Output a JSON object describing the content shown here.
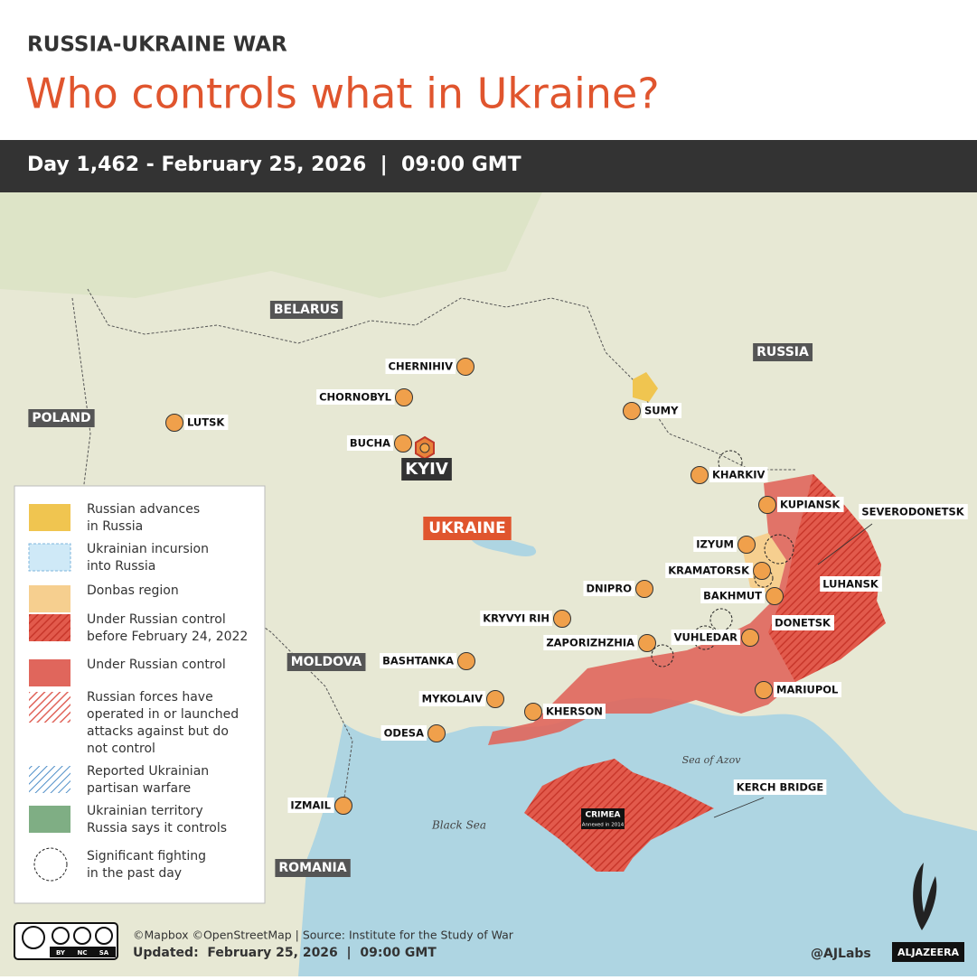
{
  "header": {
    "kicker": "RUSSIA-UKRAINE WAR",
    "title": "Who controls what in Ukraine?",
    "date_bar": "Day 1,462 - February 25, 2026  |  09:00 GMT"
  },
  "map": {
    "countries": [
      "BELARUS",
      "RUSSIA",
      "POLAND",
      "MOLDOVA",
      "ROMANIA"
    ],
    "ukraine_label": "UKRAINE",
    "capital": "KYIV",
    "cities": [
      "CHERNIHIV",
      "CHORNOBYL",
      "LUTSK",
      "BUCHA",
      "SUMY",
      "KHARKIV",
      "KUPIANSK",
      "SEVERODONETSK",
      "IZYUM",
      "KRAMATORSK",
      "LUHANSK",
      "BAKHMUT",
      "DNIPRO",
      "KRYVYI RIH",
      "DONETSK",
      "ZAPORIZHZHIA",
      "VUHLEDAR",
      "BASHTANKA",
      "MYKOLAIV",
      "KHERSON",
      "MARIUPOL",
      "ODESA",
      "IZMAIL",
      "KERCH BRIDGE"
    ],
    "seas": [
      "Sea of Azov",
      "Black Sea"
    ],
    "crimea": {
      "label": "CRIMEA",
      "note": "Annexed in 2014"
    }
  },
  "legend": {
    "items": [
      [
        "Russian advances",
        "in Russia"
      ],
      [
        "Ukrainian incursion",
        "into Russia"
      ],
      [
        "Donbas region"
      ],
      [
        "Under Russian control",
        "before February 24, 2022"
      ],
      [
        "Under Russian control"
      ],
      [
        "Russian forces have",
        "operated in or launched",
        "attacks against but do",
        "not control"
      ],
      [
        "Reported Ukrainian",
        "partisan warfare"
      ],
      [
        "Ukrainian territory",
        "Russia says it controls"
      ],
      [
        "Significant fighting",
        "in the past day"
      ]
    ]
  },
  "footer": {
    "license": [
      "BY",
      "NC",
      "SA"
    ],
    "credits": "©Mapbox ©OpenStreetMap | Source: Institute for the Study of War",
    "updated": "Updated:  February 25, 2026  |  09:00 GMT",
    "handle": "@AJLabs",
    "brand": "ALJAZEERA"
  }
}
